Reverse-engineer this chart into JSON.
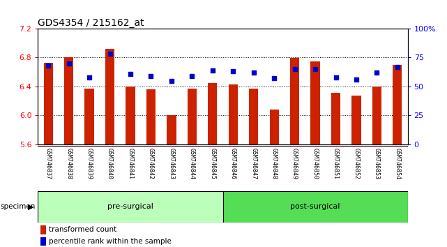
{
  "title": "GDS4354 / 215162_at",
  "samples": [
    "GSM746837",
    "GSM746838",
    "GSM746839",
    "GSM746840",
    "GSM746841",
    "GSM746842",
    "GSM746843",
    "GSM746844",
    "GSM746845",
    "GSM746846",
    "GSM746847",
    "GSM746848",
    "GSM746849",
    "GSM746850",
    "GSM746851",
    "GSM746852",
    "GSM746853",
    "GSM746854"
  ],
  "transformed_count": [
    6.73,
    6.8,
    6.37,
    6.92,
    6.4,
    6.36,
    6.0,
    6.37,
    6.45,
    6.43,
    6.37,
    6.08,
    6.79,
    6.75,
    6.31,
    6.27,
    6.4,
    6.7
  ],
  "percentile_rank": [
    68,
    70,
    58,
    78,
    61,
    59,
    55,
    59,
    64,
    63,
    62,
    57,
    65,
    65,
    58,
    56,
    62,
    67
  ],
  "ylim_left": [
    5.6,
    7.2
  ],
  "ylim_right": [
    0,
    100
  ],
  "yticks_left": [
    5.6,
    6.0,
    6.4,
    6.8,
    7.2
  ],
  "yticks_right": [
    0,
    25,
    50,
    75,
    100
  ],
  "ytick_labels_right": [
    "0",
    "25",
    "50",
    "75",
    "100%"
  ],
  "bar_color": "#cc2200",
  "dot_color": "#0000cc",
  "pre_surgical_count": 9,
  "post_surgical_count": 9,
  "pre_surgical_label": "pre-surgical",
  "post_surgical_label": "post-surgical",
  "pre_surgical_color": "#bbffbb",
  "post_surgical_color": "#55dd55",
  "specimen_label": "specimen",
  "legend_bar_label": "transformed count",
  "legend_dot_label": "percentile rank within the sample",
  "tick_label_area_color": "#cccccc",
  "title_fontsize": 10,
  "axis_fontsize": 8,
  "label_fontsize": 8
}
